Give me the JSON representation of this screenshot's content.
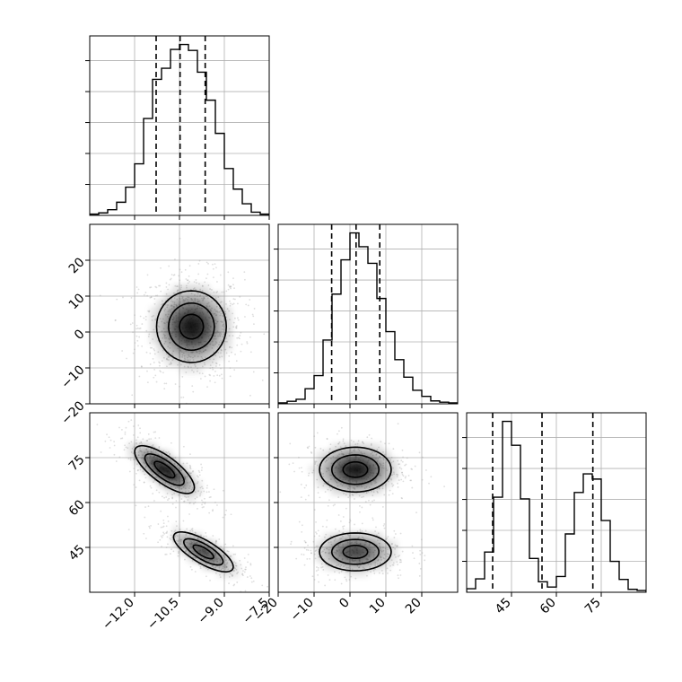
{
  "chart_data": {
    "type": "corner",
    "parameters": [
      {
        "key": "p1",
        "range": [
          -13.5,
          -7.5
        ],
        "ticks": [
          -12.0,
          -10.5,
          -9.0,
          -7.5
        ],
        "tick_labels": [
          "−12.0",
          "−10.5",
          "−9.0",
          "−7.5"
        ]
      },
      {
        "key": "p2",
        "range": [
          -20,
          30
        ],
        "ticks": [
          -20,
          -10,
          0,
          10,
          20
        ],
        "tick_labels": [
          "−20",
          "−10",
          "0",
          "10",
          "20"
        ]
      },
      {
        "key": "p3",
        "range": [
          30,
          90
        ],
        "ticks": [
          45,
          60,
          75
        ],
        "tick_labels": [
          "45",
          "60",
          "75"
        ]
      }
    ],
    "histograms": [
      {
        "parameter": "p1",
        "bin_edges": [
          -13.5,
          -13.2,
          -12.9,
          -12.6,
          -12.3,
          -12.0,
          -11.7,
          -11.4,
          -11.1,
          -10.8,
          -10.5,
          -10.2,
          -9.9,
          -9.6,
          -9.3,
          -9.0,
          -8.7,
          -8.4,
          -8.1,
          -7.8,
          -7.5
        ],
        "counts": [
          5,
          10,
          23,
          53,
          114,
          208,
          391,
          549,
          594,
          670,
          690,
          666,
          578,
          465,
          331,
          189,
          106,
          47,
          13,
          5
        ],
        "quantile_lines": [
          -11.28,
          -10.48,
          -9.64
        ]
      },
      {
        "parameter": "p2",
        "bin_edges": [
          -20,
          -17.5,
          -15,
          -12.5,
          -10,
          -7.5,
          -5,
          -2.5,
          0,
          2.5,
          5,
          7.5,
          10,
          12.5,
          15,
          17.5,
          20,
          22.5,
          25,
          27.5,
          30
        ],
        "counts": [
          5,
          14,
          25,
          83,
          155,
          350,
          602,
          790,
          938,
          862,
          771,
          578,
          396,
          242,
          146,
          74,
          41,
          16,
          9,
          5
        ],
        "quantile_lines": [
          -5.1,
          1.7,
          8.3
        ]
      },
      {
        "parameter": "p3",
        "bin_edges": [
          30,
          33,
          36,
          39,
          42,
          45,
          48,
          51,
          54,
          57,
          60,
          63,
          66,
          69,
          72,
          75,
          78,
          81,
          84,
          87,
          90
        ],
        "counts": [
          6,
          23,
          69,
          163,
          293,
          252,
          160,
          58,
          18,
          9,
          27,
          100,
          171,
          203,
          194,
          123,
          53,
          22,
          5,
          3
        ],
        "quantile_lines": [
          38.7,
          55.2,
          72.2
        ]
      }
    ],
    "density_panels": [
      {
        "x": "p1",
        "y": "p2",
        "modes": [
          {
            "cx": -10.1,
            "cy": 1.5,
            "sx": 0.7,
            "sy": 6.0,
            "rho": 0.0,
            "weight": 1.0
          }
        ],
        "contour_levels": [
          0.25,
          0.55,
          0.85
        ]
      },
      {
        "x": "p1",
        "y": "p3",
        "modes": [
          {
            "cx": -11.0,
            "cy": 71.0,
            "sx": 0.6,
            "sy": 4.8,
            "rho": -0.75,
            "weight": 0.55
          },
          {
            "cx": -9.7,
            "cy": 43.5,
            "sx": 0.6,
            "sy": 4.0,
            "rho": -0.75,
            "weight": 0.45
          }
        ],
        "contour_levels": [
          0.25,
          0.55,
          0.85
        ]
      },
      {
        "x": "p2",
        "y": "p3",
        "modes": [
          {
            "cx": 1.5,
            "cy": 71.0,
            "sx": 6.0,
            "sy": 4.5,
            "rho": 0.0,
            "weight": 0.55
          },
          {
            "cx": 1.5,
            "cy": 43.5,
            "sx": 6.0,
            "sy": 3.8,
            "rho": 0.0,
            "weight": 0.45
          }
        ],
        "contour_levels": [
          0.25,
          0.55,
          0.85
        ]
      }
    ],
    "grid": true,
    "colors": {
      "line": "#000000",
      "grid": "#b0b0b0",
      "scatter": "#a0a0a0",
      "density": "#000000"
    }
  }
}
